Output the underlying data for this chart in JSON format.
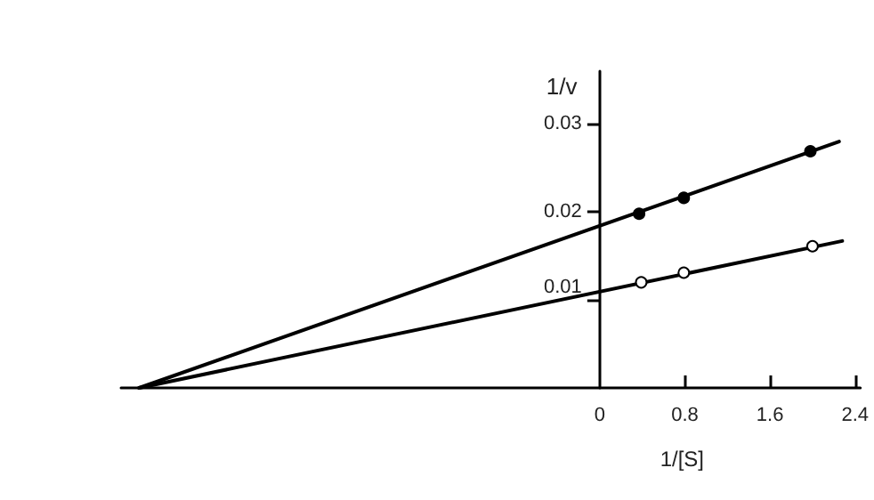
{
  "chart_data": {
    "type": "scatter",
    "xlabel": "1/[S]",
    "ylabel": "1/v",
    "xlim": [
      -4.5,
      2.45
    ],
    "ylim": [
      0,
      0.036
    ],
    "xticks": [
      0,
      0.8,
      1.6,
      2.4
    ],
    "yticks": [
      0.01,
      0.02,
      0.03
    ],
    "grid": false,
    "marker": "circle",
    "series": [
      {
        "type": "line",
        "color": "#000000",
        "x": [
          -4.33,
          2.25
        ],
        "values": [
          0,
          0.028
        ],
        "marker": "none"
      },
      {
        "color": "#000000",
        "x": [
          0.37,
          0.79,
          1.98
        ],
        "values": [
          0.0198,
          0.0216,
          0.0269
        ]
      },
      {
        "type": "line",
        "color": "#000000",
        "x": [
          -4.33,
          2.28
        ],
        "values": [
          0,
          0.0167
        ],
        "marker": "none"
      },
      {
        "color": "#ffffff",
        "x": [
          0.39,
          0.79,
          2.0
        ],
        "values": [
          0.012,
          0.0131,
          0.0161
        ]
      }
    ]
  }
}
